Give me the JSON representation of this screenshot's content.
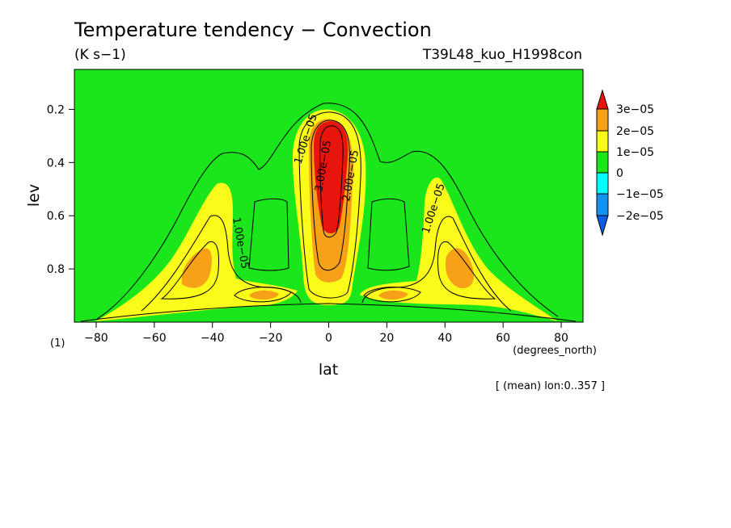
{
  "chart_data": {
    "type": "contour",
    "title": "Temperature tendency − Convection",
    "units": "(K s−1)",
    "experiment": "T39L48_kuo_H1998con",
    "xlabel": "lat",
    "ylabel": "lev",
    "x_units": "(degrees_north)",
    "y_units": "(1)",
    "footnote": "[ (mean) lon:0..357 ]",
    "xlim": [
      -87.5,
      87.5
    ],
    "ylim": [
      1.0,
      0.05
    ],
    "x_ticks": [
      -80,
      -60,
      -40,
      -20,
      0,
      20,
      40,
      60,
      80
    ],
    "x_tick_labels": [
      "−80",
      "−60",
      "−40",
      "−20",
      "0",
      "20",
      "40",
      "60",
      "80"
    ],
    "y_ticks": [
      0.2,
      0.4,
      0.6,
      0.8
    ],
    "y_tick_labels": [
      "0.2",
      "0.4",
      "0.6",
      "0.8"
    ],
    "colorbar": {
      "levels": [
        "3e−05",
        "2e−05",
        "1e−05",
        "0",
        "−1e−05",
        "−2e−05"
      ],
      "colors": [
        "#e8150f",
        "#f6a117",
        "#fbfb1a",
        "#1be51b",
        "#00ffff",
        "#1591f0",
        "#0c5ce6"
      ]
    },
    "contour_labels": [
      "1.00e−05",
      "3.00e−05",
      "2.00e−05",
      "1.00e−05",
      "1.00e−05"
    ],
    "features": [
      {
        "name": "equatorial maximum",
        "lat": 0,
        "lev": 0.28,
        "value": 3.5e-05
      },
      {
        "name": "southern midlatitude maximum",
        "lat": -44,
        "lev": 0.8,
        "value": 2.4e-05
      },
      {
        "name": "northern midlatitude maximum",
        "lat": 44,
        "lev": 0.8,
        "value": 2.4e-05
      },
      {
        "name": "southern subtropical low-level maximum",
        "lat": -22,
        "lev": 0.92,
        "value": 2.2e-05
      },
      {
        "name": "northern subtropical low-level maximum",
        "lat": 22,
        "lev": 0.92,
        "value": 2.2e-05
      }
    ]
  }
}
